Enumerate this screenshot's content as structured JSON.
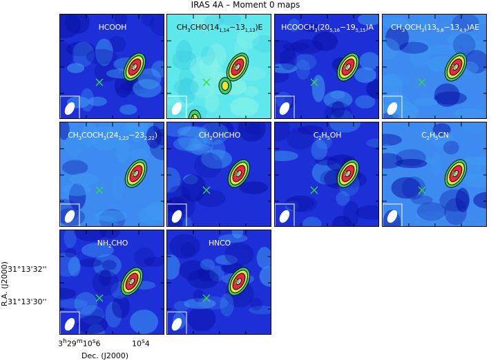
{
  "title": "IRAS 4A – Moment 0 maps",
  "panels": [
    {
      "label_html": "HCOOH",
      "bg": "dark"
    },
    {
      "label_html": "CH<sub>3</sub>CHO(14<sub>1,14</sub>−13<sub>1,13</sub>)E",
      "bg": "cyan"
    },
    {
      "label_html": "HCOOCH<sub>3</sub>(20<sub>5,16</sub>−19<sub>5,15</sub>)A",
      "bg": "dark"
    },
    {
      "label_html": "CH<sub>3</sub>OCH<sub>3</sub>(13<sub>5,8</sub>−13<sub>4,9</sub>)AE",
      "bg": "light"
    },
    {
      "label_html": "CH<sub>3</sub>COCH<sub>3</sub>(24<sub>1,23</sub>−23<sub>2,22</sub>)",
      "bg": "light"
    },
    {
      "label_html": "CH<sub>2</sub>OHCHO",
      "bg": "dark"
    },
    {
      "label_html": "C<sub>2</sub>H<sub>5</sub>OH",
      "bg": "dark"
    },
    {
      "label_html": "C<sub>2</sub>H<sub>5</sub>CN",
      "bg": "light"
    },
    {
      "label_html": "NH<sub>2</sub>CHO",
      "bg": "dark"
    },
    {
      "label_html": "HNCO",
      "bg": "dark"
    }
  ],
  "axes": {
    "ylabel": "R.A. (J2000)",
    "yticks": [
      "31°13'32''",
      "31°13'30''"
    ],
    "xlabel": "Dec. (J2000)",
    "xticks_html": [
      "3<sup>h</sup>29<sup>m</sup>10<sup>s</sup>6",
      "10<sup>s</sup>4"
    ]
  },
  "colors": {
    "dark": "#1d2fd6",
    "light": "#3d8af0",
    "cyan": "#5fe8ec",
    "contour": "#000000",
    "marker": "#3bd83b"
  }
}
